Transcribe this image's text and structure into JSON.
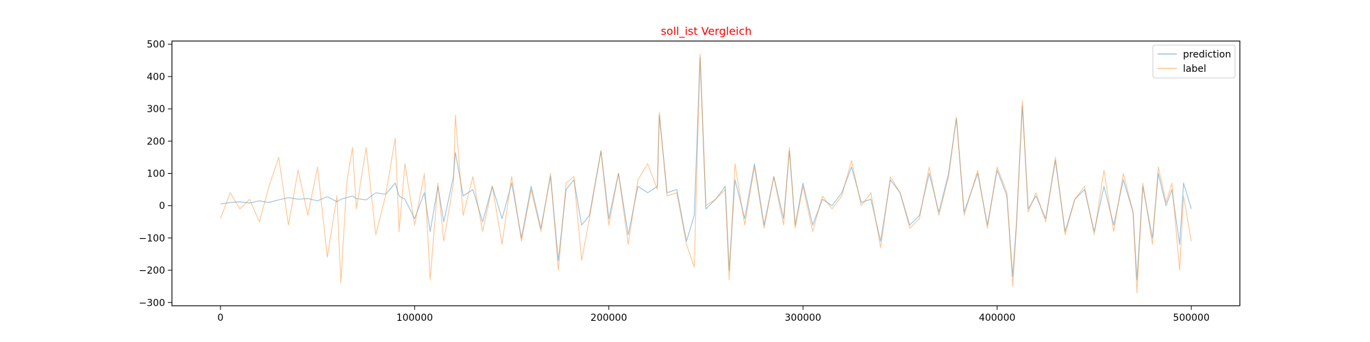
{
  "chart_data": {
    "type": "line",
    "title": "soll_ist Vergleich",
    "title_color": "#ff0000",
    "xlabel": "",
    "ylabel": "",
    "xlim": [
      -25000,
      525000
    ],
    "ylim": [
      -310,
      510
    ],
    "grid": false,
    "legend_position": "top-right",
    "x_ticks": [
      0,
      100000,
      200000,
      300000,
      400000,
      500000
    ],
    "x_tick_labels": [
      "0",
      "100000",
      "200000",
      "300000",
      "400000",
      "500000"
    ],
    "y_ticks": [
      -300,
      -200,
      -100,
      0,
      100,
      200,
      300,
      400,
      500
    ],
    "y_tick_labels": [
      "−300",
      "−200",
      "−100",
      "0",
      "100",
      "200",
      "300",
      "400",
      "500"
    ],
    "x": [
      0,
      5000,
      10000,
      15000,
      20000,
      25000,
      30000,
      35000,
      40000,
      45000,
      50000,
      55000,
      60000,
      62000,
      65000,
      68000,
      70000,
      75000,
      80000,
      85000,
      90000,
      92000,
      95000,
      100000,
      105000,
      108000,
      112000,
      115000,
      120000,
      121000,
      125000,
      130000,
      135000,
      140000,
      145000,
      150000,
      155000,
      160000,
      165000,
      170000,
      174000,
      178000,
      182000,
      186000,
      190000,
      196000,
      200000,
      205000,
      210000,
      215000,
      220000,
      225000,
      226000,
      230000,
      235000,
      240000,
      244000,
      247000,
      250000,
      255000,
      260000,
      262000,
      265000,
      270000,
      275000,
      280000,
      285000,
      290000,
      293000,
      296000,
      300000,
      305000,
      310000,
      315000,
      320000,
      325000,
      330000,
      335000,
      340000,
      345000,
      350000,
      355000,
      360000,
      365000,
      370000,
      375000,
      379000,
      383000,
      390000,
      395000,
      400000,
      405000,
      408000,
      410000,
      413000,
      416000,
      420000,
      425000,
      430000,
      435000,
      440000,
      445000,
      450000,
      455000,
      460000,
      465000,
      470000,
      472000,
      475000,
      480000,
      483000,
      487000,
      490000,
      494000,
      496000,
      500000
    ],
    "series": [
      {
        "name": "prediction",
        "color": "#1f77b4",
        "values": [
          5,
          10,
          12,
          8,
          15,
          10,
          18,
          25,
          20,
          22,
          15,
          28,
          12,
          20,
          25,
          30,
          22,
          18,
          40,
          35,
          70,
          30,
          20,
          -40,
          40,
          -80,
          60,
          -50,
          90,
          165,
          30,
          50,
          -50,
          60,
          -40,
          70,
          -100,
          60,
          -70,
          90,
          -170,
          50,
          80,
          -60,
          -30,
          170,
          -40,
          100,
          -90,
          60,
          40,
          60,
          280,
          40,
          50,
          -110,
          -30,
          460,
          -10,
          20,
          60,
          -200,
          80,
          -40,
          130,
          -60,
          90,
          -40,
          170,
          -60,
          70,
          -60,
          20,
          0,
          40,
          120,
          10,
          20,
          -110,
          80,
          40,
          -60,
          -30,
          100,
          -20,
          100,
          270,
          -20,
          100,
          -60,
          110,
          30,
          -220,
          -50,
          310,
          -10,
          30,
          -40,
          140,
          -80,
          20,
          50,
          -80,
          60,
          -60,
          80,
          -20,
          -230,
          60,
          -100,
          100,
          0,
          50,
          -120,
          70,
          -10
        ],
        "line_values": []
      },
      {
        "name": "label",
        "color": "#ff7f0e",
        "values": [
          -40,
          40,
          -10,
          20,
          -50,
          60,
          150,
          -60,
          110,
          -30,
          120,
          -160,
          30,
          -240,
          70,
          180,
          -10,
          180,
          -90,
          30,
          210,
          -80,
          130,
          -60,
          100,
          -230,
          70,
          -110,
          70,
          280,
          -30,
          90,
          -80,
          60,
          -120,
          90,
          -110,
          50,
          -80,
          100,
          -200,
          70,
          90,
          -170,
          -40,
          170,
          -60,
          100,
          -120,
          80,
          130,
          50,
          290,
          30,
          40,
          -120,
          -190,
          470,
          0,
          20,
          50,
          -230,
          130,
          -60,
          120,
          -70,
          90,
          -60,
          180,
          -70,
          60,
          -80,
          30,
          -10,
          30,
          140,
          0,
          40,
          -130,
          90,
          40,
          -70,
          -40,
          120,
          -30,
          90,
          275,
          -30,
          110,
          -70,
          120,
          40,
          -250,
          -60,
          325,
          -20,
          40,
          -50,
          150,
          -90,
          20,
          60,
          -90,
          110,
          -80,
          100,
          -20,
          -270,
          70,
          -120,
          120,
          10,
          70,
          -200,
          30,
          -110
        ]
      }
    ]
  }
}
